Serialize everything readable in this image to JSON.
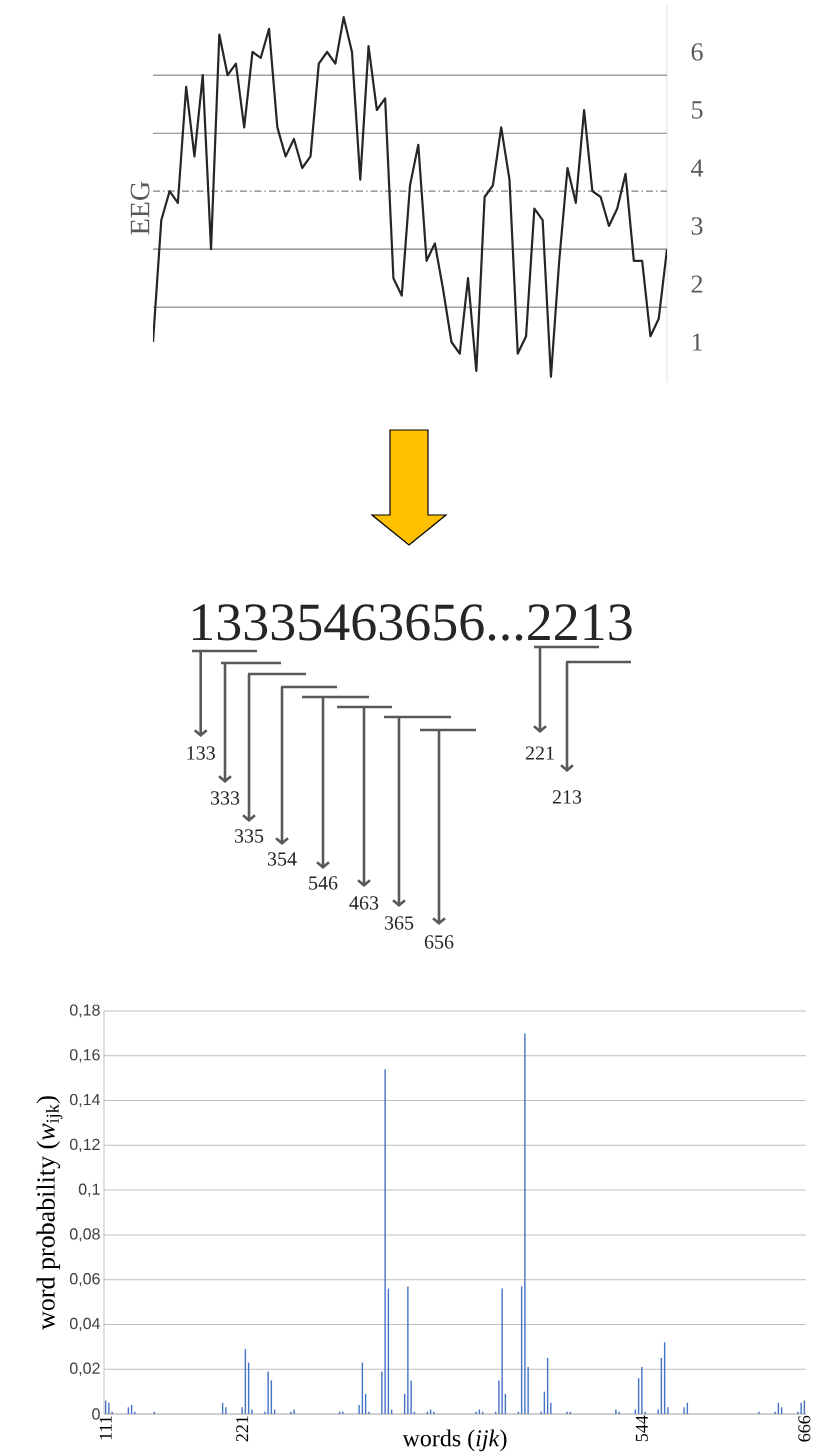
{
  "chart_data": [
    {
      "type": "line",
      "ylabel": "EEG",
      "tick_labels": "y",
      "color": "#262626",
      "ylim": [
        0.3,
        6.8
      ],
      "yticks": [
        1,
        2,
        3,
        4,
        5,
        6
      ],
      "categories": [
        null,
        null,
        null,
        null,
        null,
        null,
        null,
        null,
        null,
        null,
        null,
        null,
        null,
        null,
        null,
        null,
        null,
        null,
        null,
        null,
        null,
        null,
        null,
        null,
        null,
        null,
        null,
        null,
        null,
        null,
        null,
        null,
        null,
        null,
        null,
        null,
        null,
        null,
        null,
        null,
        null,
        null,
        null,
        null,
        null,
        null,
        null,
        null,
        null,
        null,
        null,
        null,
        null,
        null,
        null,
        null,
        null,
        null,
        null,
        null,
        null,
        null,
        null
      ],
      "values": [
        1.0,
        3.1,
        3.6,
        3.4,
        5.4,
        4.2,
        5.6,
        2.6,
        6.3,
        5.6,
        5.8,
        4.7,
        6.0,
        5.9,
        6.4,
        4.7,
        4.2,
        4.5,
        4.0,
        4.2,
        5.8,
        6.0,
        5.8,
        6.6,
        6.0,
        3.8,
        6.1,
        5.0,
        5.2,
        2.1,
        1.8,
        3.7,
        4.4,
        2.4,
        2.7,
        1.9,
        1.0,
        0.8,
        2.1,
        0.5,
        3.5,
        3.7,
        4.7,
        3.8,
        0.8,
        1.1,
        3.3,
        3.1,
        0.4,
        2.4,
        4.0,
        3.4,
        5.0,
        3.6,
        3.5,
        3.0,
        3.3,
        3.9,
        2.4,
        2.4,
        1.1,
        1.4,
        2.6
      ],
      "ref_lines": [
        {
          "axis": "y",
          "value": 1.6,
          "color": "#808080"
        },
        {
          "axis": "y",
          "value": 2.6,
          "color": "#808080"
        },
        {
          "axis": "y",
          "value": 3.6,
          "color": "#808080",
          "line_style": "dashed"
        },
        {
          "axis": "y",
          "value": 4.6,
          "color": "#808080"
        },
        {
          "axis": "y",
          "value": 5.6,
          "color": "#808080"
        }
      ]
    },
    {
      "type": "other",
      "title": "13335463656...2213",
      "categories": [
        "133",
        "333",
        "335",
        "354",
        "546",
        "463",
        "365",
        "656",
        "221",
        "213"
      ]
    },
    {
      "type": "bar",
      "xlabel": "words (*ijk*)",
      "ylabel": "word probability (*w*$_{ijk}$)",
      "color": "#4472c4",
      "grid": "y",
      "ylim": [
        0,
        0.18
      ],
      "yticks": [
        0,
        {
          "value": 0.02,
          "label": "0,02"
        },
        {
          "value": 0.04,
          "label": "0,04"
        },
        {
          "value": 0.06,
          "label": "0,06"
        },
        {
          "value": 0.08,
          "label": "0,08"
        },
        {
          "value": 0.1,
          "label": "0,1"
        },
        {
          "value": 0.12,
          "label": "0,12"
        },
        {
          "value": 0.14,
          "label": "0,14"
        },
        {
          "value": 0.16,
          "label": "0,16"
        },
        {
          "value": 0.18,
          "label": "0,18"
        }
      ],
      "categories": [
        "111",
        null,
        null,
        null,
        null,
        null,
        null,
        null,
        null,
        null,
        null,
        null,
        null,
        null,
        null,
        null,
        null,
        null,
        null,
        null,
        null,
        null,
        null,
        null,
        null,
        null,
        null,
        null,
        null,
        null,
        null,
        null,
        null,
        null,
        null,
        null,
        null,
        null,
        null,
        null,
        null,
        null,
        "221",
        null,
        null,
        null,
        null,
        null,
        null,
        null,
        null,
        null,
        null,
        null,
        null,
        null,
        null,
        null,
        null,
        null,
        null,
        null,
        null,
        null,
        null,
        null,
        null,
        null,
        null,
        null,
        null,
        null,
        null,
        null,
        null,
        null,
        null,
        null,
        null,
        null,
        null,
        null,
        null,
        null,
        null,
        null,
        null,
        null,
        null,
        null,
        null,
        null,
        null,
        null,
        null,
        null,
        null,
        null,
        null,
        null,
        null,
        null,
        null,
        null,
        null,
        null,
        null,
        null,
        null,
        null,
        null,
        null,
        null,
        null,
        null,
        null,
        null,
        null,
        null,
        null,
        null,
        null,
        null,
        null,
        null,
        null,
        null,
        null,
        null,
        null,
        null,
        null,
        null,
        null,
        null,
        null,
        null,
        null,
        null,
        null,
        null,
        null,
        null,
        null,
        null,
        null,
        null,
        null,
        null,
        null,
        null,
        null,
        null,
        null,
        null,
        null,
        null,
        null,
        null,
        null,
        null,
        null,
        null,
        null,
        null,
        "544",
        null,
        null,
        null,
        null,
        null,
        null,
        null,
        null,
        null,
        null,
        null,
        null,
        null,
        null,
        null,
        null,
        null,
        null,
        null,
        null,
        null,
        null,
        null,
        null,
        null,
        null,
        null,
        null,
        null,
        null,
        null,
        null,
        null,
        null,
        null,
        null,
        null,
        null,
        null,
        null,
        null,
        null,
        null,
        null,
        null,
        null,
        null,
        null,
        null,
        "666"
      ],
      "values": [
        0.006,
        0.005,
        0.001,
        0,
        0,
        0,
        0,
        0.003,
        0.004,
        0.001,
        0,
        0,
        0,
        0,
        0,
        0.001,
        0,
        0,
        0,
        0,
        0,
        0,
        0,
        0,
        0,
        0,
        0,
        0,
        0,
        0,
        0,
        0,
        0,
        0,
        0,
        0,
        0.005,
        0.003,
        0,
        0,
        0,
        0,
        0.003,
        0.029,
        0.023,
        0.002,
        0,
        0,
        0,
        0.001,
        0.019,
        0.015,
        0.002,
        0,
        0,
        0,
        0,
        0.001,
        0.002,
        0,
        0,
        0,
        0,
        0,
        0,
        0,
        0,
        0,
        0,
        0,
        0,
        0,
        0.001,
        0.001,
        0,
        0,
        0,
        0,
        0.004,
        0.023,
        0.009,
        0.001,
        0,
        0,
        0,
        0.019,
        0.154,
        0.056,
        0.002,
        0,
        0,
        0,
        0.009,
        0.057,
        0.015,
        0.001,
        0,
        0,
        0,
        0.001,
        0.002,
        0.001,
        0,
        0,
        0,
        0,
        0,
        0,
        0,
        0,
        0,
        0,
        0,
        0,
        0.001,
        0.002,
        0.001,
        0,
        0,
        0,
        0.001,
        0.015,
        0.056,
        0.009,
        0,
        0,
        0,
        0.001,
        0.057,
        0.17,
        0.021,
        0,
        0,
        0,
        0.001,
        0.01,
        0.025,
        0.005,
        0,
        0,
        0,
        0,
        0.001,
        0.001,
        0,
        0,
        0,
        0,
        0,
        0,
        0,
        0,
        0,
        0,
        0,
        0,
        0,
        0.002,
        0.001,
        0,
        0,
        0,
        0,
        0.002,
        0.016,
        0.021,
        0.001,
        0,
        0,
        0,
        0.002,
        0.025,
        0.032,
        0.003,
        0,
        0,
        0,
        0,
        0.003,
        0.005,
        0,
        0,
        0,
        0,
        0,
        0,
        0,
        0,
        0,
        0,
        0,
        0,
        0,
        0,
        0,
        0,
        0,
        0,
        0,
        0,
        0,
        0.001,
        0,
        0,
        0,
        0,
        0.001,
        0.005,
        0.003,
        0,
        0,
        0,
        0,
        0.001,
        0.005,
        0.006
      ]
    }
  ]
}
